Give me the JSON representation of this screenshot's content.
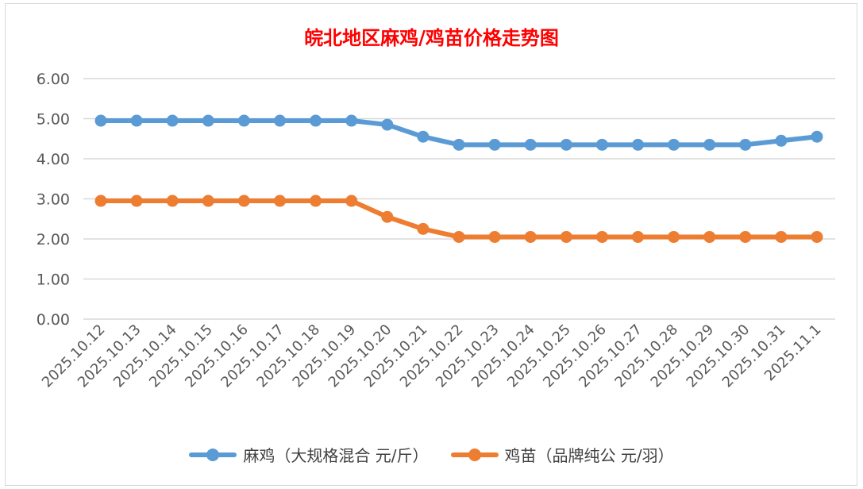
{
  "chart_data": {
    "type": "line",
    "title": "皖北地区麻鸡/鸡苗价格走势图",
    "categories": [
      "2025.10.12",
      "2025.10.13",
      "2025.10.14",
      "2025.10.15",
      "2025.10.16",
      "2025.10.17",
      "2025.10.18",
      "2025.10.19",
      "2025.10.20",
      "2025.10.21",
      "2025.10.22",
      "2025.10.23",
      "2025.10.24",
      "2025.10.25",
      "2025.10.26",
      "2025.10.27",
      "2025.10.28",
      "2025.10.29",
      "2025.10.30",
      "2025.10.31",
      "2025.11.1"
    ],
    "series": [
      {
        "name": "麻鸡（大规格混合 元/斤）",
        "color": "#5b9bd5",
        "values": [
          4.95,
          4.95,
          4.95,
          4.95,
          4.95,
          4.95,
          4.95,
          4.95,
          4.85,
          4.55,
          4.35,
          4.35,
          4.35,
          4.35,
          4.35,
          4.35,
          4.35,
          4.35,
          4.35,
          4.45,
          4.55
        ]
      },
      {
        "name": "鸡苗（品牌纯公 元/羽）",
        "color": "#ed7d31",
        "values": [
          2.95,
          2.95,
          2.95,
          2.95,
          2.95,
          2.95,
          2.95,
          2.95,
          2.55,
          2.25,
          2.05,
          2.05,
          2.05,
          2.05,
          2.05,
          2.05,
          2.05,
          2.05,
          2.05,
          2.05,
          2.05
        ]
      }
    ],
    "ylim": [
      0,
      6
    ],
    "yticks": [
      "0.00",
      "1.00",
      "2.00",
      "3.00",
      "4.00",
      "5.00",
      "6.00"
    ],
    "grid": true,
    "legend": "bottom",
    "xlabel": "",
    "ylabel": ""
  }
}
